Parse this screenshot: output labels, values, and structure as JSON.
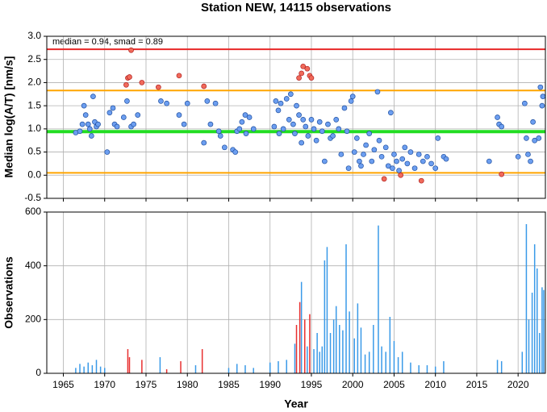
{
  "chart_data": [
    {
      "type": "scatter",
      "title": "Station NEW, 14115 observations",
      "annotation": "median = 0.94, smad = 0.89",
      "y_label": "Median log(A/T) [nm/s]",
      "xlim": [
        1963,
        2023.3
      ],
      "xticks": [
        1965,
        1970,
        1975,
        1980,
        1985,
        1990,
        1995,
        2000,
        2005,
        2010,
        2015,
        2020
      ],
      "ylim": [
        -0.5,
        3.0
      ],
      "yticks": [
        {
          "value": 3.0,
          "label": "3.0"
        },
        2.5,
        {
          "value": 2.0,
          "label": "2.0"
        },
        1.5,
        {
          "value": 1.0,
          "label": "1.0"
        },
        0.5,
        {
          "value": 0.0,
          "label": "0.0"
        },
        -0.5
      ],
      "grid": true,
      "hlines": [
        {
          "value": 2.72,
          "color": "#e82828"
        },
        {
          "value": 1.83,
          "color": "#ffa500"
        },
        {
          "value": 0.94,
          "color": "#22dd22"
        },
        {
          "value": 0.05,
          "color": "#ffa500"
        }
      ],
      "series": [
        {
          "color": "#6c9ef0",
          "x": [
            1966.5,
            1967,
            1967.3,
            1967.5,
            1967.7,
            1968,
            1968.2,
            1968.4,
            1968.6,
            1968.8,
            1969,
            1969.2,
            1970.3,
            1970.6,
            1971,
            1971.2,
            1971.5,
            1972.3,
            1972.7,
            1973.2,
            1973.5,
            1974,
            1976.8,
            1977.5,
            1979,
            1979.6,
            1980,
            1982,
            1982.4,
            1982.8,
            1983.4,
            1983.8,
            1984,
            1984.5,
            1985.5,
            1985.8,
            1986,
            1986.3,
            1986.6,
            1987,
            1987.1,
            1987.5,
            1988,
            1990.5,
            1990.7,
            1991,
            1991.1,
            1991.3,
            1991.6,
            1992,
            1992.3,
            1992.5,
            1992.8,
            1993,
            1993.2,
            1993.5,
            1993.8,
            1994,
            1994.3,
            1994.6,
            1995,
            1995.3,
            1995.6,
            1996,
            1996.3,
            1996.6,
            1997,
            1997.3,
            1997.6,
            1998,
            1998.3,
            1998.6,
            1999,
            1999.3,
            1999.5,
            1999.8,
            2000,
            2000.2,
            2000.5,
            2000.8,
            2001,
            2001.3,
            2001.6,
            2002,
            2002.3,
            2002.6,
            2003,
            2003.2,
            2003.5,
            2004,
            2004.3,
            2004.6,
            2004.8,
            2005,
            2005.3,
            2005.6,
            2006,
            2006.3,
            2006.6,
            2007,
            2007.5,
            2008,
            2008.5,
            2009,
            2009.5,
            2010,
            2010.3,
            2011,
            2011.3,
            2016.5,
            2017.5,
            2017.7,
            2018,
            2020,
            2020.8,
            2021,
            2021.2,
            2021.5,
            2021.8,
            2022,
            2022.5,
            2022.7,
            2022.9,
            2023
          ],
          "values": [
            0.92,
            0.95,
            1.1,
            1.5,
            1.3,
            1.1,
            1.0,
            0.85,
            1.7,
            1.15,
            1.05,
            1.1,
            0.5,
            1.35,
            1.45,
            1.1,
            1.05,
            1.25,
            1.6,
            1.05,
            1.1,
            1.3,
            1.6,
            1.55,
            1.3,
            1.1,
            1.55,
            0.7,
            1.6,
            1.1,
            1.55,
            0.95,
            0.85,
            0.6,
            0.55,
            0.5,
            0.95,
            1.0,
            1.15,
            1.3,
            0.9,
            1.25,
            1.0,
            1.05,
            1.6,
            1.4,
            0.9,
            1.55,
            1.0,
            1.65,
            1.2,
            1.75,
            1.1,
            0.9,
            1.5,
            1.3,
            0.7,
            1.2,
            1.05,
            0.85,
            1.2,
            1.0,
            0.75,
            1.15,
            0.95,
            0.3,
            1.1,
            0.8,
            0.85,
            1.2,
            1.0,
            0.45,
            1.45,
            0.95,
            0.15,
            1.6,
            1.7,
            0.5,
            0.8,
            0.3,
            0.2,
            0.45,
            0.65,
            0.9,
            0.3,
            0.55,
            1.8,
            0.75,
            0.4,
            0.6,
            0.2,
            1.35,
            0.15,
            0.45,
            0.3,
            0.1,
            0.35,
            0.6,
            0.25,
            0.5,
            0.15,
            0.45,
            0.3,
            0.4,
            0.25,
            0.15,
            0.8,
            0.4,
            0.35,
            0.3,
            1.25,
            1.1,
            1.05,
            0.4,
            1.55,
            0.8,
            0.45,
            0.3,
            1.15,
            0.75,
            0.8,
            1.9,
            1.5,
            1.7
          ]
        },
        {
          "color": "#f06a5a",
          "x": [
            1972.6,
            1972.8,
            1973,
            1973.2,
            1974.5,
            1976.5,
            1979,
            1982,
            1993.5,
            1993.8,
            1994,
            1994.5,
            1994.8,
            1995,
            2003.8,
            2005.8,
            2008.3,
            2018
          ],
          "values": [
            1.95,
            2.1,
            2.12,
            2.7,
            2.0,
            1.9,
            2.15,
            1.92,
            2.1,
            2.2,
            2.35,
            2.3,
            2.15,
            2.1,
            -0.08,
            0.0,
            -0.12,
            0.02
          ]
        }
      ]
    },
    {
      "type": "bar",
      "x_label": "Year",
      "y_label": "Observations",
      "xlim": [
        1963,
        2023.3
      ],
      "xticks": [
        1965,
        1970,
        1975,
        1980,
        1985,
        1990,
        1995,
        2000,
        2005,
        2010,
        2015,
        2020
      ],
      "ylim": [
        0,
        600
      ],
      "yticks": [
        0,
        200,
        400,
        600
      ],
      "grid": true,
      "series": [
        {
          "color": "#3a9ae8",
          "x": [
            1966.5,
            1967,
            1967.5,
            1968,
            1968.5,
            1969,
            1969.5,
            1970,
            1976.7,
            1981,
            1985,
            1986,
            1987,
            1988,
            1990,
            1991,
            1992,
            1993,
            1993.8,
            1994.5,
            1995.3,
            1995.7,
            1996,
            1996.3,
            1996.6,
            1996.9,
            1997.3,
            1997.7,
            1998,
            1998.4,
            1998.8,
            1999.2,
            1999.6,
            2000.2,
            2000.6,
            2001,
            2001.5,
            2002,
            2002.5,
            2003.1,
            2003.5,
            2004,
            2004.5,
            2005,
            2005.5,
            2006,
            2007,
            2008,
            2009,
            2010,
            2011,
            2017.5,
            2018,
            2020.5,
            2021,
            2021.3,
            2021.7,
            2022,
            2022.3,
            2022.6,
            2022.9,
            2023.1
          ],
          "values": [
            20,
            35,
            25,
            40,
            30,
            50,
            25,
            20,
            60,
            30,
            20,
            35,
            30,
            20,
            40,
            45,
            50,
            110,
            340,
            100,
            90,
            150,
            80,
            100,
            420,
            470,
            150,
            200,
            250,
            180,
            160,
            480,
            230,
            130,
            260,
            170,
            70,
            80,
            180,
            550,
            100,
            80,
            210,
            120,
            60,
            80,
            40,
            30,
            30,
            25,
            45,
            50,
            45,
            80,
            555,
            200,
            300,
            480,
            390,
            150,
            320,
            310
          ]
        },
        {
          "color": "#e83030",
          "x": [
            1972.8,
            1973,
            1974.5,
            1977.5,
            1979.2,
            1981.8,
            1993.2,
            1993.6,
            1994.2,
            1994.8
          ],
          "values": [
            90,
            60,
            50,
            15,
            45,
            90,
            180,
            265,
            200,
            220
          ]
        }
      ]
    }
  ]
}
